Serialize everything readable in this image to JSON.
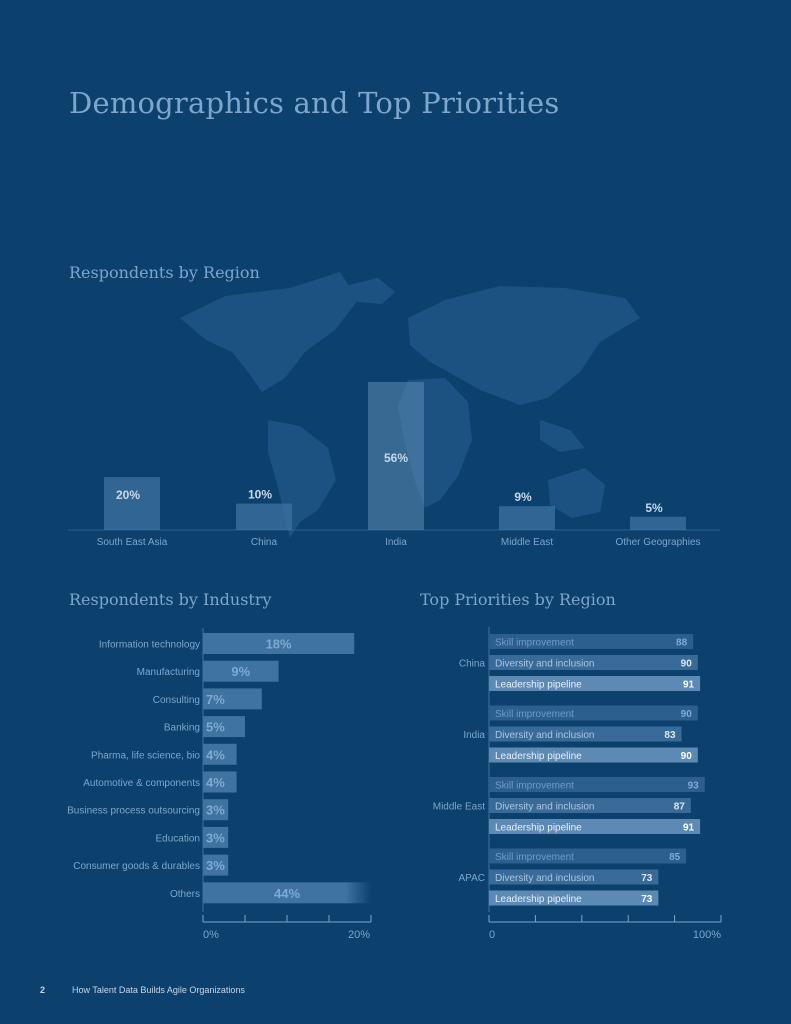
{
  "page": {
    "title": "Demographics and Top Priorities",
    "footer_page_number": "2",
    "footer_text": "How Talent Data Builds Agile Organizations"
  },
  "colors": {
    "background": "#0b416c",
    "bar": "#2d5f8c",
    "bar_light": "#3f73a0",
    "highlight_bar": "#5d8ab4",
    "label_text": "#7ea6cc",
    "value_text": "#c6d8ea",
    "map": "#1b5281"
  },
  "chart_data": [
    {
      "id": "region",
      "type": "bar",
      "title": "Respondents by Region",
      "categories": [
        "South East Asia",
        "China",
        "India",
        "Middle East",
        "Other Geographies"
      ],
      "values": [
        20,
        10,
        56,
        9,
        5
      ],
      "value_labels": [
        "20%",
        "10%",
        "56%",
        "9%",
        "5%"
      ],
      "ylim": [
        0,
        56
      ],
      "background_image": "world-map"
    },
    {
      "id": "industry",
      "type": "bar",
      "orientation": "horizontal",
      "title": "Respondents by Industry",
      "categories": [
        "Information technology",
        "Manufacturing",
        "Consulting",
        "Banking",
        "Pharma, life science, bio",
        "Automotive & components",
        "Business process outsourcing",
        "Education",
        "Consumer goods & durables",
        "Others"
      ],
      "values": [
        18,
        9,
        7,
        5,
        4,
        4,
        3,
        3,
        3,
        44
      ],
      "value_labels": [
        "18%",
        "9%",
        "7%",
        "5%",
        "4%",
        "4%",
        "3%",
        "3%",
        "3%",
        "44%"
      ],
      "xlim": [
        0,
        20
      ],
      "x_tick_labels": [
        "0%",
        "20%"
      ],
      "truncated_categories": [
        "Others"
      ]
    },
    {
      "id": "priorities",
      "type": "bar",
      "orientation": "horizontal",
      "title": "Top Priorities by Region",
      "groups": [
        "China",
        "India",
        "Middle East",
        "APAC"
      ],
      "series": [
        {
          "name": "Skill improvement",
          "values": [
            88,
            90,
            93,
            85
          ]
        },
        {
          "name": "Diversity and inclusion",
          "values": [
            90,
            83,
            87,
            73
          ]
        },
        {
          "name": "Leadership pipeline",
          "values": [
            91,
            90,
            91,
            73
          ]
        }
      ],
      "xlim": [
        0,
        100
      ],
      "x_tick_labels": [
        "0",
        "100%"
      ]
    }
  ]
}
